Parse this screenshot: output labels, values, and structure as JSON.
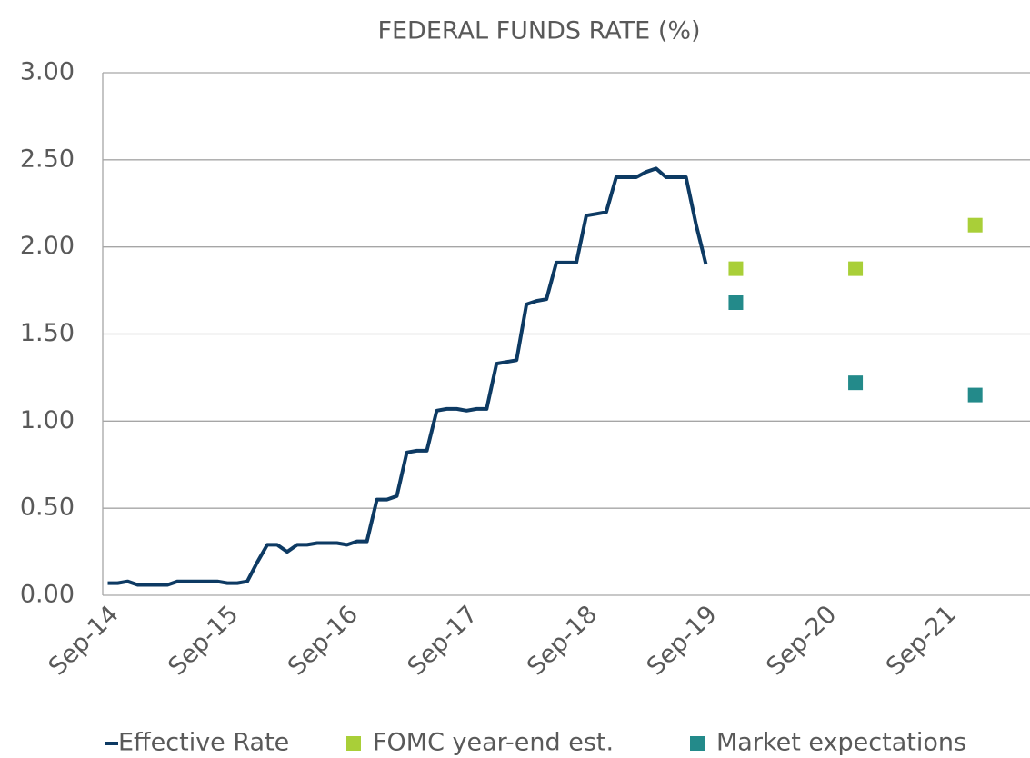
{
  "chart_data": {
    "type": "line",
    "title": "FEDERAL FUNDS RATE (%)",
    "categories": [
      "Sep-14",
      null,
      null,
      null,
      null,
      null,
      null,
      null,
      null,
      null,
      null,
      null,
      "Sep-15",
      null,
      null,
      null,
      null,
      null,
      null,
      null,
      null,
      null,
      null,
      null,
      "Sep-16",
      null,
      null,
      null,
      null,
      null,
      null,
      null,
      null,
      null,
      null,
      null,
      "Sep-17",
      null,
      null,
      null,
      null,
      null,
      null,
      null,
      null,
      null,
      null,
      null,
      "Sep-18",
      null,
      null,
      null,
      null,
      null,
      null,
      null,
      null,
      null,
      null,
      null,
      "Sep-19",
      null,
      null,
      null,
      null,
      null,
      null,
      null,
      null,
      null,
      null,
      null,
      "Sep-20",
      null,
      null,
      null,
      null,
      null,
      null,
      null,
      null,
      null,
      null,
      null,
      "Sep-21",
      null,
      null,
      null,
      null,
      null,
      null,
      null,
      null
    ],
    "series": [
      {
        "name": "Effective Rate",
        "type": "line",
        "color": "#0d3a63",
        "values": [
          0.07,
          0.07,
          0.08,
          0.06,
          0.06,
          0.06,
          0.06,
          0.08,
          0.08,
          0.08,
          0.08,
          0.08,
          0.07,
          0.07,
          0.08,
          0.19,
          0.29,
          0.29,
          0.25,
          0.29,
          0.29,
          0.3,
          0.3,
          0.3,
          0.29,
          0.31,
          0.31,
          0.55,
          0.55,
          0.57,
          0.82,
          0.83,
          0.83,
          1.06,
          1.07,
          1.07,
          1.06,
          1.07,
          1.07,
          1.33,
          1.34,
          1.35,
          1.67,
          1.69,
          1.7,
          1.91,
          1.91,
          1.91,
          2.18,
          2.19,
          2.2,
          2.4,
          2.4,
          2.4,
          2.43,
          2.45,
          2.4,
          2.4,
          2.4,
          2.13,
          1.9,
          null,
          null,
          null,
          null,
          null,
          null,
          null,
          null,
          null,
          null,
          null,
          null,
          null,
          null,
          null,
          null,
          null,
          null,
          null,
          null,
          null,
          null,
          null,
          null,
          null,
          null,
          null,
          null,
          null,
          null,
          null,
          null
        ]
      },
      {
        "name": "FOMC year-end est.",
        "type": "scatter",
        "color": "#a9cf38",
        "values": [
          null,
          null,
          null,
          null,
          null,
          null,
          null,
          null,
          null,
          null,
          null,
          null,
          null,
          null,
          null,
          null,
          null,
          null,
          null,
          null,
          null,
          null,
          null,
          null,
          null,
          null,
          null,
          null,
          null,
          null,
          null,
          null,
          null,
          null,
          null,
          null,
          null,
          null,
          null,
          null,
          null,
          null,
          null,
          null,
          null,
          null,
          null,
          null,
          null,
          null,
          null,
          null,
          null,
          null,
          null,
          null,
          null,
          null,
          null,
          null,
          null,
          null,
          null,
          1.875,
          null,
          null,
          null,
          null,
          null,
          null,
          null,
          null,
          null,
          null,
          null,
          1.875,
          null,
          null,
          null,
          null,
          null,
          null,
          null,
          null,
          null,
          null,
          null,
          2.125,
          null,
          null,
          null,
          null,
          null
        ]
      },
      {
        "name": "Market expectations",
        "type": "scatter",
        "color": "#238a8a",
        "values": [
          null,
          null,
          null,
          null,
          null,
          null,
          null,
          null,
          null,
          null,
          null,
          null,
          null,
          null,
          null,
          null,
          null,
          null,
          null,
          null,
          null,
          null,
          null,
          null,
          null,
          null,
          null,
          null,
          null,
          null,
          null,
          null,
          null,
          null,
          null,
          null,
          null,
          null,
          null,
          null,
          null,
          null,
          null,
          null,
          null,
          null,
          null,
          null,
          null,
          null,
          null,
          null,
          null,
          null,
          null,
          null,
          null,
          null,
          null,
          null,
          null,
          null,
          null,
          1.68,
          null,
          null,
          null,
          null,
          null,
          null,
          null,
          null,
          null,
          null,
          null,
          1.22,
          null,
          null,
          null,
          null,
          null,
          null,
          null,
          null,
          null,
          null,
          null,
          1.15,
          null,
          null,
          null,
          null,
          null
        ]
      }
    ],
    "ylim": [
      0,
      3
    ],
    "yticks": [
      {
        "value": 0,
        "label": "0.00"
      },
      {
        "value": 0.5,
        "label": "0.50"
      },
      {
        "value": 1,
        "label": "1.00"
      },
      {
        "value": 1.5,
        "label": "1.50"
      },
      {
        "value": 2,
        "label": "2.00"
      },
      {
        "value": 2.5,
        "label": "2.50"
      },
      {
        "value": 3,
        "label": "3.00"
      }
    ],
    "grid": true,
    "legend": "bottom"
  }
}
